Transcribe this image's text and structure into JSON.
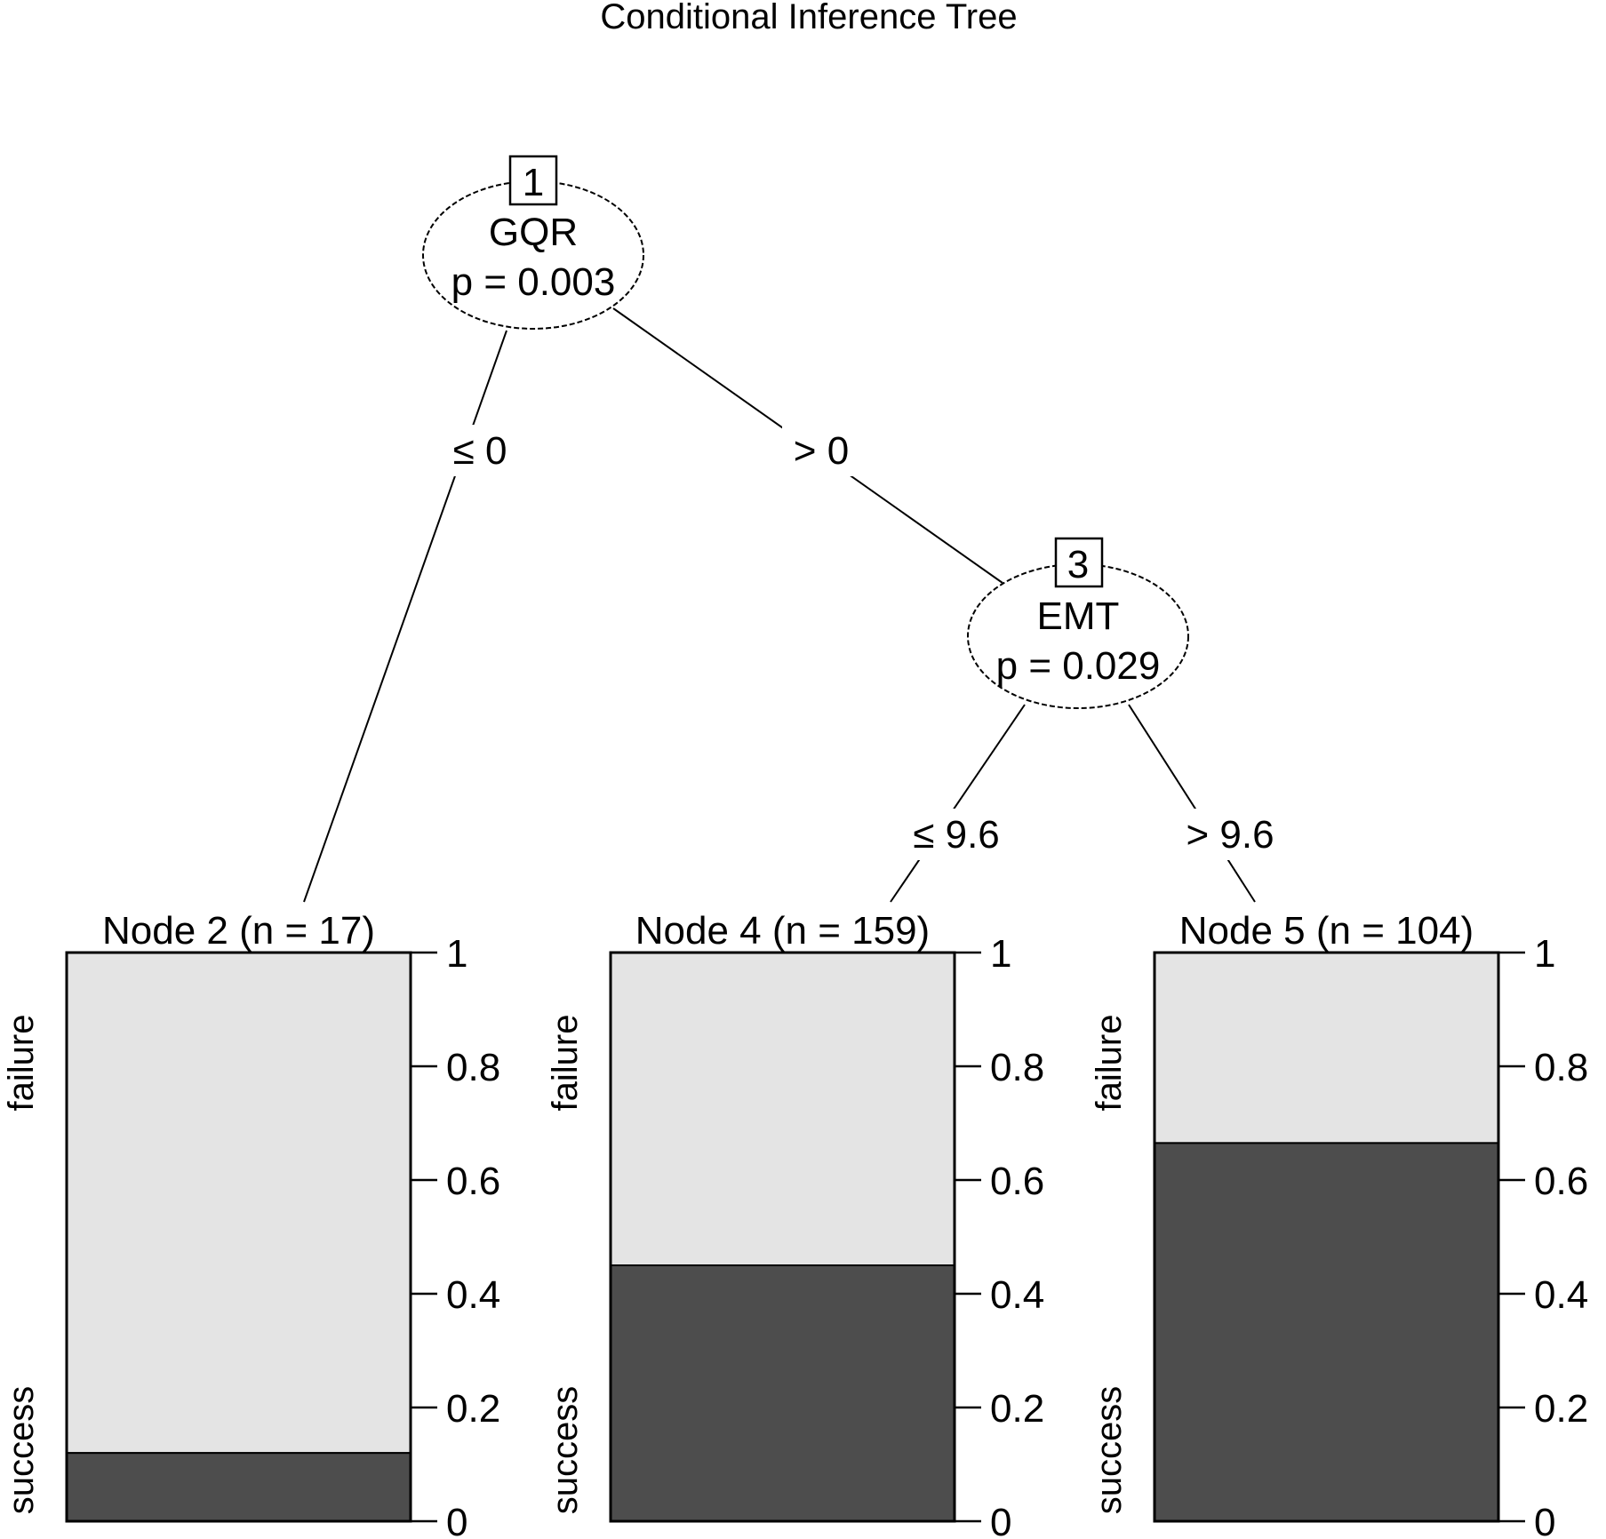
{
  "title": "Conditional Inference Tree",
  "colors": {
    "failure": "#e4e4e4",
    "success": "#4d4d4d",
    "edge": "#000000"
  },
  "inner_nodes": [
    {
      "id": "1",
      "variable": "GQR",
      "p_value": "p = 0.003"
    },
    {
      "id": "3",
      "variable": "EMT",
      "p_value": "p = 0.029"
    }
  ],
  "edges": [
    {
      "from": "1",
      "to": "2",
      "label": "≤ 0"
    },
    {
      "from": "1",
      "to": "3",
      "label": "> 0"
    },
    {
      "from": "3",
      "to": "4",
      "label": "≤ 9.6"
    },
    {
      "from": "3",
      "to": "5",
      "label": "> 9.6"
    }
  ],
  "axis": {
    "ticks": [
      "1",
      "0.8",
      "0.6",
      "0.4",
      "0.2",
      "0"
    ],
    "tick_values": [
      1,
      0.8,
      0.6,
      0.4,
      0.2,
      0
    ],
    "class_top": "failure",
    "class_bottom": "success"
  },
  "chart_data": {
    "type": "bar",
    "stacked": true,
    "categories": [
      "Node 2 (n = 17)",
      "Node 4 (n = 159)",
      "Node 5 (n = 104)"
    ],
    "series": [
      {
        "name": "success",
        "values": [
          0.12,
          0.45,
          0.665
        ]
      },
      {
        "name": "failure",
        "values": [
          0.88,
          0.55,
          0.335
        ]
      }
    ],
    "ylim": [
      0,
      1
    ],
    "yticks": [
      0,
      0.2,
      0.4,
      0.6,
      0.8,
      1
    ]
  }
}
